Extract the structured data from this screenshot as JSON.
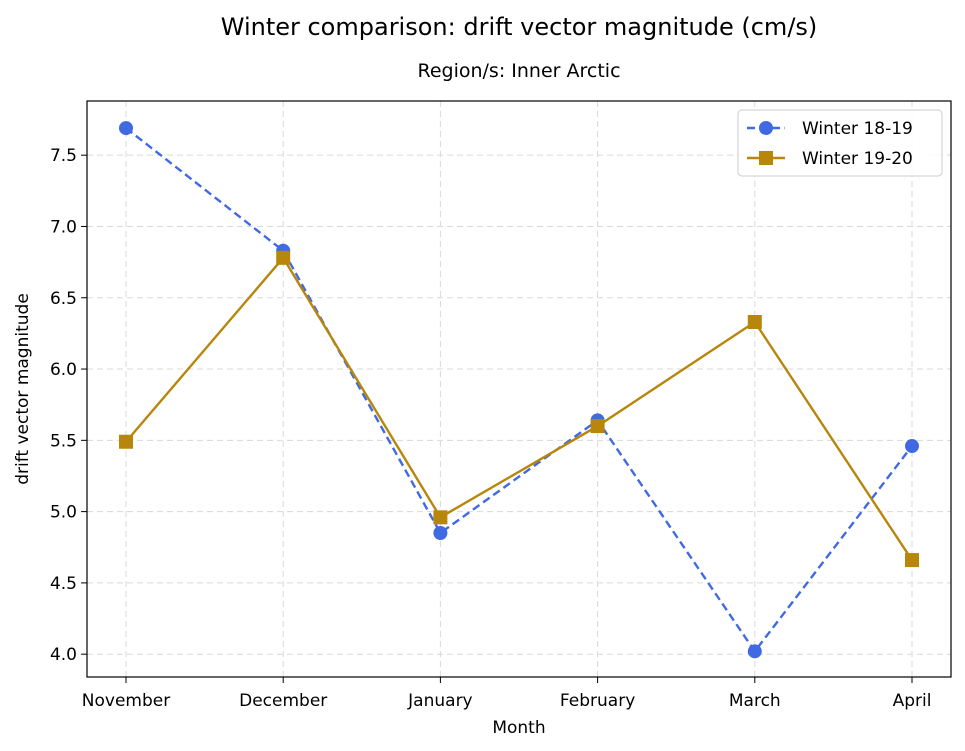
{
  "chart_data": {
    "type": "line",
    "title": "Winter comparison: drift vector magnitude (cm/s)",
    "subtitle": "Region/s: Inner Arctic",
    "xlabel": "Month",
    "ylabel": "drift vector magnitude",
    "categories": [
      "November",
      "December",
      "January",
      "February",
      "March",
      "April"
    ],
    "ylim": [
      3.84,
      7.88
    ],
    "yticks": [
      4.0,
      4.5,
      5.0,
      5.5,
      6.0,
      6.5,
      7.0,
      7.5
    ],
    "ytick_labels": [
      "4.0",
      "4.5",
      "5.0",
      "5.5",
      "6.0",
      "6.5",
      "7.0",
      "7.5"
    ],
    "grid": true,
    "legend_position": "top-right",
    "series": [
      {
        "name": "Winter 18-19",
        "values": [
          7.69,
          6.83,
          4.85,
          5.64,
          4.02,
          5.46
        ],
        "color": "#4169e1",
        "line_style": "dashed",
        "marker": "circle"
      },
      {
        "name": "Winter 19-20",
        "values": [
          5.49,
          6.78,
          4.96,
          5.6,
          6.33,
          4.66
        ],
        "color": "#b8860b",
        "line_style": "solid",
        "marker": "square"
      }
    ]
  }
}
